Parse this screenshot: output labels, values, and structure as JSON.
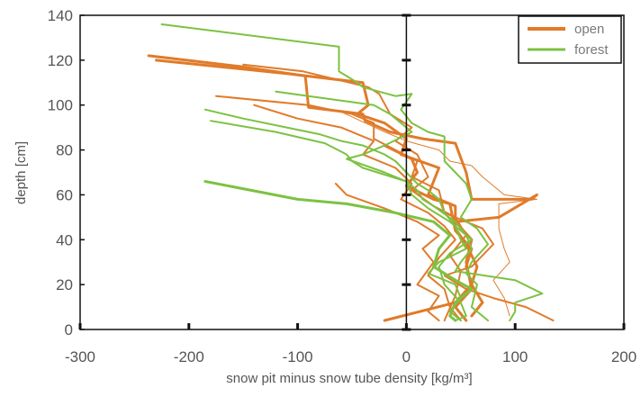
{
  "chart_data": {
    "type": "line",
    "title": "",
    "xlabel": "snow pit minus snow tube density [kg/m³]",
    "ylabel": "depth [cm]",
    "xlim": [
      -300,
      200
    ],
    "ylim": [
      0,
      140
    ],
    "xticks": [
      "-300",
      "-200",
      "-100",
      "0",
      "100",
      "200"
    ],
    "yticks": [
      "0",
      "20",
      "40",
      "60",
      "80",
      "100",
      "120",
      "140"
    ],
    "legend": {
      "placement": "top-right",
      "entries": [
        {
          "label": "open",
          "color": "#E07B2A"
        },
        {
          "label": "forest",
          "color": "#7CC242"
        }
      ]
    },
    "grid": false,
    "series": [
      {
        "name": "open",
        "color": "#E07B2A",
        "width": 3,
        "points": [
          [
            -237,
            122
          ],
          [
            -150,
            117
          ],
          [
            -93,
            113
          ],
          [
            -90,
            99
          ],
          [
            -40,
            96
          ],
          [
            -38,
            93
          ],
          [
            -15,
            88
          ],
          [
            15,
            85
          ],
          [
            45,
            83
          ],
          [
            55,
            70
          ],
          [
            60,
            58
          ],
          [
            115,
            58
          ],
          [
            120,
            60
          ],
          [
            85,
            50
          ],
          [
            45,
            48
          ],
          [
            60,
            40
          ],
          [
            55,
            30
          ],
          [
            60,
            18
          ],
          [
            45,
            10
          ],
          [
            55,
            4
          ]
        ]
      },
      {
        "name": "open",
        "color": "#E07B2A",
        "width": 3,
        "points": [
          [
            -230,
            120
          ],
          [
            -110,
            114
          ],
          [
            -40,
            110
          ],
          [
            -35,
            100
          ],
          [
            -45,
            96
          ],
          [
            -20,
            92
          ],
          [
            0,
            85
          ],
          [
            -5,
            78
          ],
          [
            30,
            72
          ],
          [
            20,
            60
          ],
          [
            45,
            55
          ],
          [
            45,
            45
          ],
          [
            55,
            38
          ],
          [
            65,
            28
          ],
          [
            60,
            20
          ],
          [
            70,
            12
          ],
          [
            60,
            6
          ]
        ]
      },
      {
        "name": "open",
        "color": "#E07B2A",
        "width": 2,
        "points": [
          [
            -150,
            118
          ],
          [
            -95,
            115
          ],
          [
            -35,
            108
          ],
          [
            -25,
            105
          ],
          [
            -15,
            96
          ],
          [
            5,
            90
          ],
          [
            -10,
            84
          ],
          [
            10,
            78
          ],
          [
            20,
            68
          ],
          [
            5,
            62
          ],
          [
            25,
            55
          ],
          [
            45,
            50
          ],
          [
            55,
            42
          ],
          [
            40,
            33
          ],
          [
            50,
            26
          ],
          [
            45,
            15
          ],
          [
            35,
            4
          ]
        ]
      },
      {
        "name": "open",
        "color": "#E07B2A",
        "width": 2,
        "points": [
          [
            -175,
            104
          ],
          [
            -90,
            100
          ],
          [
            -50,
            96
          ],
          [
            -30,
            92
          ],
          [
            -30,
            85
          ],
          [
            -10,
            80
          ],
          [
            10,
            75
          ],
          [
            5,
            68
          ],
          [
            30,
            62
          ],
          [
            35,
            52
          ],
          [
            70,
            45
          ],
          [
            80,
            38
          ],
          [
            60,
            28
          ],
          [
            35,
            24
          ],
          [
            55,
            18
          ],
          [
            80,
            14
          ],
          [
            110,
            10
          ],
          [
            135,
            4
          ]
        ]
      },
      {
        "name": "open",
        "color": "#E07B2A",
        "width": 2,
        "points": [
          [
            -140,
            100
          ],
          [
            -100,
            94
          ],
          [
            -60,
            90
          ],
          [
            -30,
            84
          ],
          [
            -40,
            78
          ],
          [
            -10,
            72
          ],
          [
            5,
            65
          ],
          [
            -5,
            58
          ],
          [
            20,
            52
          ],
          [
            35,
            46
          ],
          [
            45,
            40
          ],
          [
            30,
            32
          ],
          [
            20,
            24
          ],
          [
            35,
            18
          ],
          [
            40,
            10
          ],
          [
            50,
            4
          ]
        ]
      },
      {
        "name": "open",
        "color": "#E07B2A",
        "width": 2,
        "points": [
          [
            -65,
            65
          ],
          [
            -55,
            60
          ],
          [
            -20,
            54
          ],
          [
            10,
            48
          ],
          [
            30,
            42
          ],
          [
            15,
            36
          ],
          [
            25,
            30
          ],
          [
            10,
            20
          ],
          [
            30,
            15
          ],
          [
            20,
            8
          ],
          [
            30,
            4
          ]
        ]
      },
      {
        "name": "open",
        "color": "#E07B2A",
        "width": 1,
        "points": [
          [
            -60,
            97
          ],
          [
            -20,
            88
          ],
          [
            0,
            84
          ],
          [
            30,
            80
          ],
          [
            40,
            75
          ],
          [
            60,
            73
          ],
          [
            70,
            68
          ],
          [
            90,
            60
          ],
          [
            120,
            58
          ],
          [
            85,
            56
          ],
          [
            85,
            45
          ],
          [
            90,
            36
          ],
          [
            95,
            30
          ],
          [
            80,
            22
          ],
          [
            90,
            14
          ],
          [
            95,
            6
          ]
        ]
      },
      {
        "name": "open",
        "color": "#E07B2A",
        "width": 3,
        "points": [
          [
            -20,
            82
          ],
          [
            5,
            76
          ],
          [
            10,
            70
          ],
          [
            0,
            64
          ],
          [
            25,
            58
          ],
          [
            40,
            56
          ],
          [
            45,
            44
          ],
          [
            60,
            36
          ],
          [
            55,
            28
          ],
          [
            60,
            20
          ],
          [
            45,
            12
          ],
          [
            -20,
            4
          ]
        ]
      },
      {
        "name": "forest",
        "color": "#7CC242",
        "width": 2,
        "points": [
          [
            -225,
            136
          ],
          [
            -62,
            126
          ],
          [
            -62,
            115
          ],
          [
            -45,
            110
          ],
          [
            -40,
            108
          ],
          [
            -10,
            104
          ],
          [
            5,
            105
          ],
          [
            -5,
            98
          ],
          [
            5,
            92
          ],
          [
            20,
            88
          ],
          [
            35,
            86
          ],
          [
            35,
            75
          ],
          [
            45,
            70
          ],
          [
            55,
            65
          ],
          [
            60,
            58
          ],
          [
            50,
            50
          ],
          [
            65,
            45
          ],
          [
            75,
            38
          ],
          [
            60,
            30
          ],
          [
            55,
            25
          ],
          [
            65,
            20
          ],
          [
            60,
            10
          ],
          [
            75,
            4
          ]
        ]
      },
      {
        "name": "forest",
        "color": "#7CC242",
        "width": 2,
        "points": [
          [
            -185,
            98
          ],
          [
            -150,
            94
          ],
          [
            -110,
            90
          ],
          [
            -80,
            87
          ],
          [
            -60,
            84
          ],
          [
            -40,
            82
          ],
          [
            -20,
            78
          ],
          [
            -10,
            75
          ],
          [
            0,
            70
          ],
          [
            10,
            65
          ],
          [
            20,
            62
          ],
          [
            30,
            58
          ],
          [
            35,
            52
          ],
          [
            45,
            46
          ],
          [
            50,
            40
          ],
          [
            55,
            36
          ],
          [
            30,
            30
          ],
          [
            20,
            25
          ],
          [
            45,
            20
          ],
          [
            50,
            14
          ],
          [
            40,
            8
          ],
          [
            50,
            4
          ]
        ]
      },
      {
        "name": "forest",
        "color": "#7CC242",
        "width": 2,
        "points": [
          [
            -180,
            93
          ],
          [
            -120,
            88
          ],
          [
            -75,
            83
          ],
          [
            -55,
            78
          ],
          [
            -50,
            75
          ],
          [
            -40,
            72
          ],
          [
            -20,
            69
          ],
          [
            0,
            66
          ],
          [
            10,
            62
          ],
          [
            15,
            58
          ],
          [
            25,
            55
          ],
          [
            45,
            48
          ],
          [
            55,
            42
          ],
          [
            60,
            36
          ],
          [
            50,
            30
          ],
          [
            45,
            26
          ],
          [
            100,
            22
          ],
          [
            125,
            16
          ],
          [
            100,
            12
          ],
          [
            100,
            8
          ],
          [
            95,
            4
          ]
        ]
      },
      {
        "name": "forest",
        "color": "#7CC242",
        "width": 3,
        "points": [
          [
            -185,
            66
          ],
          [
            -100,
            58
          ],
          [
            -55,
            56
          ],
          [
            -10,
            52
          ],
          [
            25,
            48
          ],
          [
            40,
            42
          ],
          [
            30,
            36
          ],
          [
            25,
            28
          ],
          [
            45,
            22
          ],
          [
            60,
            18
          ],
          [
            45,
            12
          ],
          [
            40,
            6
          ],
          [
            45,
            4
          ]
        ]
      },
      {
        "name": "forest",
        "color": "#7CC242",
        "width": 2,
        "points": [
          [
            -120,
            106
          ],
          [
            -60,
            102
          ],
          [
            -30,
            100
          ],
          [
            -15,
            96
          ],
          [
            5,
            88
          ],
          [
            -20,
            82
          ],
          [
            -40,
            78
          ],
          [
            -55,
            76
          ],
          [
            -20,
            70
          ],
          [
            0,
            66
          ],
          [
            5,
            60
          ],
          [
            20,
            54
          ],
          [
            40,
            48
          ],
          [
            60,
            40
          ],
          [
            40,
            34
          ],
          [
            30,
            28
          ],
          [
            35,
            20
          ],
          [
            50,
            12
          ],
          [
            55,
            6
          ],
          [
            45,
            4
          ]
        ]
      }
    ]
  }
}
